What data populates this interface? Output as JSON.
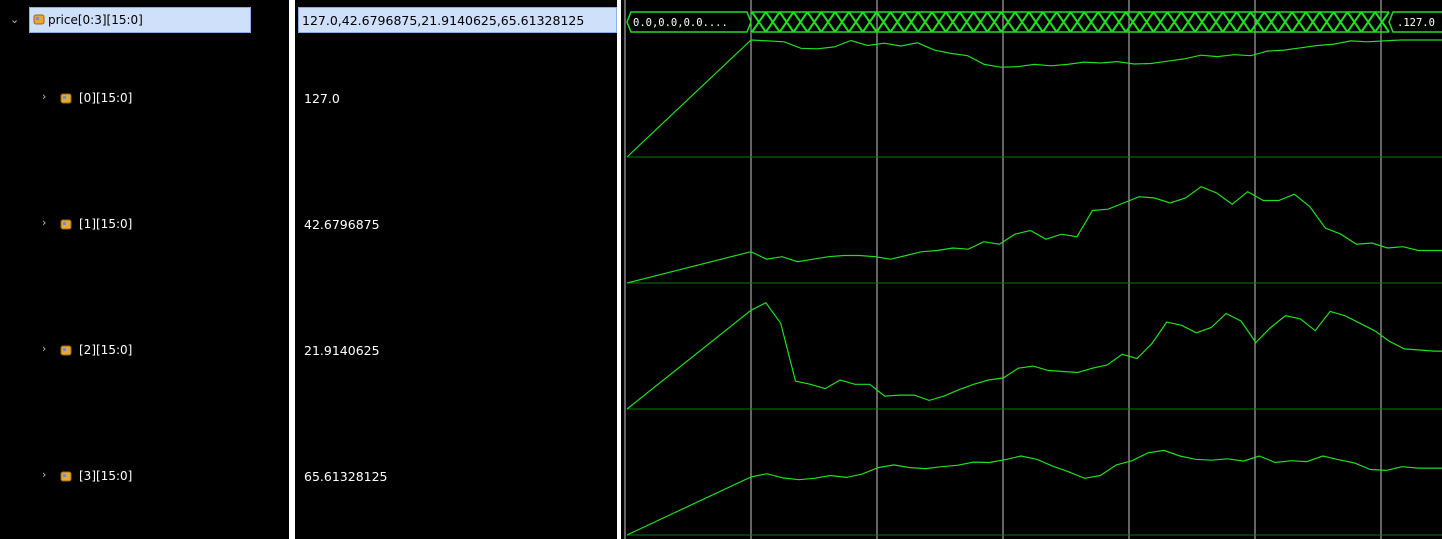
{
  "signals": [
    {
      "name": "price[0:3][15:0]",
      "value": "127.0,42.6796875,21.9140625,65.61328125",
      "expanded": true,
      "selected": true
    },
    {
      "name": "[0][15:0]",
      "value": "127.0"
    },
    {
      "name": "[1][15:0]",
      "value": "42.6796875"
    },
    {
      "name": "[2][15:0]",
      "value": "21.9140625"
    },
    {
      "name": "[3][15:0]",
      "value": "65.61328125"
    }
  ],
  "bus": {
    "initial_label": "0.0,0.0,0.0....",
    "final_label": ".127.0",
    "transition_count": 46
  },
  "icons": {
    "expanded": "chevron-down-icon",
    "collapsed": "chevron-right-icon",
    "signal": "bus-signal-icon"
  },
  "colors": {
    "background": "#000000",
    "wave": "#22dd22",
    "grid": "#c8c8c8",
    "selection": "#cfe0fb"
  },
  "chart_data": {
    "type": "line",
    "series": [
      {
        "name": "[0][15:0]",
        "values": [
          0.0,
          127.0,
          126.0,
          125.0,
          118.0,
          117.5,
          119.5,
          126.5,
          121.0,
          123.5,
          120.5,
          124.0,
          116.0,
          112.5,
          110.0,
          100.5,
          97.5,
          98.0,
          100.5,
          99.0,
          100.5,
          103.0,
          102.0,
          103.5,
          101.0,
          101.5,
          104.0,
          106.5,
          110.5,
          109.0,
          111.0,
          110.0,
          115.0,
          116.0,
          118.5,
          121.0,
          122.5,
          126.0,
          125.0,
          126.0,
          127.0,
          127.0,
          127.0
        ]
      },
      {
        "name": "[1][15:0]",
        "values": [
          0.0,
          12.5,
          9.5,
          10.5,
          8.5,
          9.5,
          10.5,
          11.0,
          11.0,
          10.5,
          9.5,
          11.0,
          12.5,
          13.0,
          14.0,
          13.5,
          16.5,
          15.5,
          19.5,
          21.0,
          17.5,
          19.5,
          18.5,
          29.0,
          29.5,
          32.0,
          34.5,
          34.0,
          32.0,
          34.0,
          38.5,
          36.0,
          31.5,
          36.5,
          33.0,
          33.0,
          35.5,
          30.5,
          22.0,
          19.5,
          15.5,
          16.0,
          14.0,
          14.5,
          13.0,
          13.0
        ]
      },
      {
        "name": "[2][15:0]",
        "values": [
          0.0,
          46.0,
          49.5,
          40.0,
          13.0,
          11.5,
          9.5,
          13.5,
          11.5,
          11.5,
          6.0,
          6.5,
          6.5,
          4.0,
          6.0,
          9.0,
          11.5,
          13.5,
          14.5,
          19.0,
          20.0,
          18.0,
          17.5,
          17.0,
          19.0,
          20.5,
          25.5,
          23.5,
          30.5,
          40.5,
          39.0,
          35.5,
          38.0,
          44.5,
          41.0,
          31.0,
          38.0,
          43.5,
          42.0,
          36.5,
          45.5,
          43.5,
          40.0,
          36.5,
          31.5,
          28.0,
          27.5,
          27.0
        ]
      },
      {
        "name": "[3][15:0]",
        "values": [
          0.0,
          62.5,
          66.0,
          61.5,
          59.5,
          61.0,
          64.0,
          62.0,
          65.5,
          72.5,
          75.5,
          72.5,
          71.5,
          73.5,
          75.0,
          78.5,
          78.0,
          81.0,
          85.0,
          81.5,
          74.0,
          68.0,
          61.0,
          64.0,
          75.5,
          80.0,
          88.5,
          91.0,
          85.0,
          81.5,
          80.5,
          82.0,
          79.5,
          85.0,
          78.0,
          80.0,
          79.0,
          85.0,
          81.0,
          77.5,
          70.5,
          69.5,
          73.5,
          72.0,
          72.0
        ]
      }
    ],
    "ylim": [
      0,
      127
    ],
    "grid": true
  }
}
